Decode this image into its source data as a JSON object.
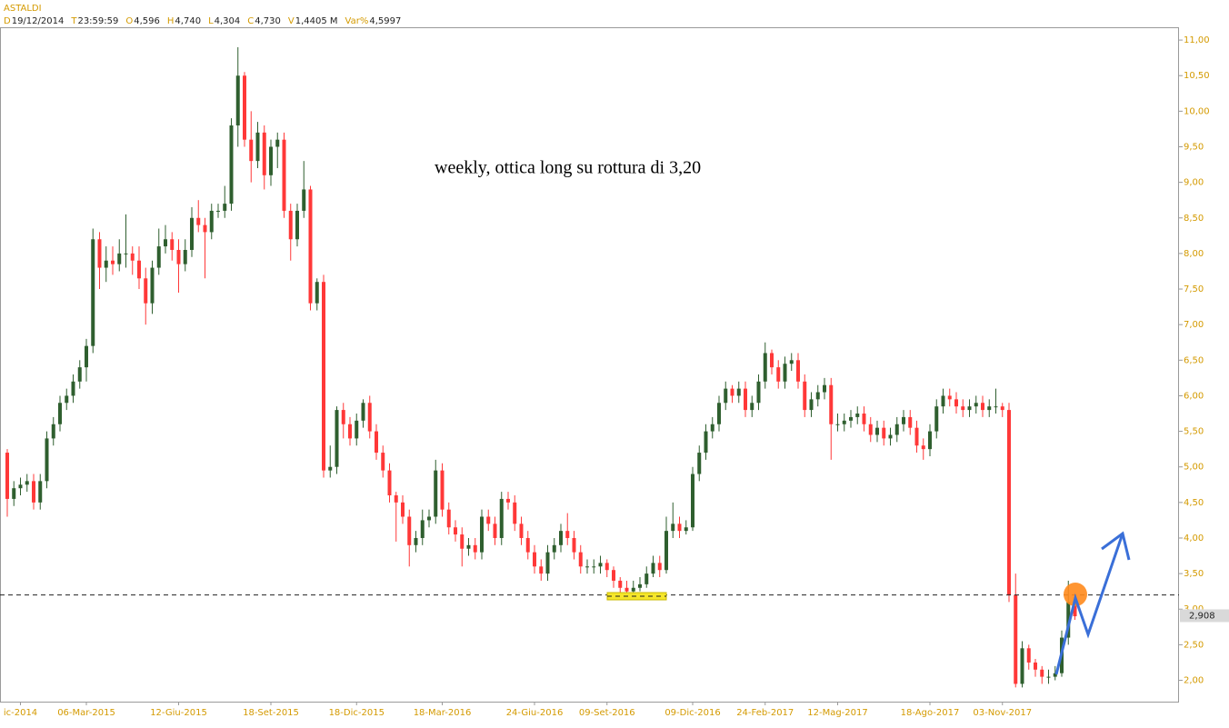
{
  "chart_data": {
    "type": "candlestick",
    "title": "ASTALDI",
    "info": [
      {
        "key": "D",
        "value": "19/12/2014"
      },
      {
        "key": "T",
        "value": "23:59:59"
      },
      {
        "key": "O",
        "value": "4,596"
      },
      {
        "key": "H",
        "value": "4,740"
      },
      {
        "key": "L",
        "value": "4,304"
      },
      {
        "key": "C",
        "value": "4,730"
      },
      {
        "key": "V",
        "value": "1,4405 M"
      },
      {
        "key": "Var%",
        "value": "4,5997"
      }
    ],
    "annotation": "weekly, ottica long su rottura di 3,20",
    "up_color": "#2f5f2f",
    "down_color": "#ff3838",
    "reference_line": 3.2,
    "last_price": {
      "value": 2.908,
      "label": "2,908"
    },
    "ylim": [
      1.7,
      11.18
    ],
    "yticks": [
      {
        "value": 2,
        "label": "2,00"
      },
      {
        "value": 2.5,
        "label": "2,50"
      },
      {
        "value": 3,
        "label": "3,00"
      },
      {
        "value": 3.5,
        "label": "3,50"
      },
      {
        "value": 4,
        "label": "4,00"
      },
      {
        "value": 4.5,
        "label": "4,50"
      },
      {
        "value": 5,
        "label": "5,00"
      },
      {
        "value": 5.5,
        "label": "5,50"
      },
      {
        "value": 6,
        "label": "6,00"
      },
      {
        "value": 6.5,
        "label": "6,50"
      },
      {
        "value": 7,
        "label": "7,00"
      },
      {
        "value": 7.5,
        "label": "7,50"
      },
      {
        "value": 8,
        "label": "8,00"
      },
      {
        "value": 8.5,
        "label": "8,50"
      },
      {
        "value": 9,
        "label": "9,00"
      },
      {
        "value": 9.5,
        "label": "9,50"
      },
      {
        "value": 10,
        "label": "10,00"
      },
      {
        "value": 10.5,
        "label": "10,50"
      },
      {
        "value": 11,
        "label": "11,00"
      }
    ],
    "categories": [
      null,
      null,
      "ic-2014",
      null,
      null,
      null,
      null,
      null,
      null,
      null,
      null,
      null,
      "06-Mar-2015",
      null,
      null,
      null,
      null,
      null,
      null,
      null,
      null,
      null,
      null,
      null,
      null,
      null,
      "12-Giu-2015",
      null,
      null,
      null,
      null,
      null,
      null,
      null,
      null,
      null,
      null,
      null,
      null,
      null,
      "18-Set-2015",
      null,
      null,
      null,
      null,
      null,
      null,
      null,
      null,
      null,
      null,
      null,
      null,
      "18-Dic-2015",
      null,
      null,
      null,
      null,
      null,
      null,
      null,
      null,
      null,
      null,
      null,
      null,
      "18-Mar-2016",
      null,
      null,
      null,
      null,
      null,
      null,
      null,
      null,
      null,
      null,
      null,
      null,
      null,
      "24-Giu-2016",
      null,
      null,
      null,
      null,
      null,
      null,
      null,
      null,
      null,
      null,
      "09-Set-2016",
      null,
      null,
      null,
      null,
      null,
      null,
      null,
      null,
      null,
      null,
      null,
      null,
      "09-Dic-2016",
      null,
      null,
      null,
      null,
      null,
      null,
      null,
      null,
      null,
      null,
      "24-Feb-2017",
      null,
      null,
      null,
      null,
      null,
      null,
      null,
      null,
      null,
      null,
      "12-Mag-2017",
      null,
      null,
      null,
      null,
      null,
      null,
      null,
      null,
      null,
      null,
      null,
      null,
      null,
      "18-Ago-2017",
      null,
      null,
      null,
      null,
      null,
      null,
      null,
      null,
      null,
      null,
      "03-Nov-2017",
      null,
      null,
      null,
      null,
      null,
      null,
      null,
      null,
      null,
      null,
      null
    ],
    "ohlc": [
      [
        5.2,
        5.25,
        4.3,
        4.55
      ],
      [
        4.55,
        4.8,
        4.45,
        4.7
      ],
      [
        4.7,
        4.85,
        4.6,
        4.75
      ],
      [
        4.75,
        4.9,
        4.65,
        4.8
      ],
      [
        4.8,
        4.9,
        4.4,
        4.5
      ],
      [
        4.5,
        4.9,
        4.4,
        4.8
      ],
      [
        4.8,
        5.5,
        4.7,
        5.4
      ],
      [
        5.4,
        5.7,
        5.3,
        5.6
      ],
      [
        5.6,
        6.0,
        5.5,
        5.9
      ],
      [
        5.9,
        6.1,
        5.8,
        6.0
      ],
      [
        6.0,
        6.3,
        5.9,
        6.2
      ],
      [
        6.2,
        6.5,
        6.1,
        6.4
      ],
      [
        6.4,
        6.8,
        6.2,
        6.7
      ],
      [
        6.7,
        8.35,
        6.6,
        8.2
      ],
      [
        8.2,
        8.3,
        7.5,
        7.8
      ],
      [
        7.8,
        8.1,
        7.6,
        7.9
      ],
      [
        7.9,
        8.1,
        7.7,
        7.85
      ],
      [
        7.85,
        8.2,
        7.75,
        8.0
      ],
      [
        8.0,
        8.55,
        7.8,
        8.0
      ],
      [
        8.0,
        8.1,
        7.7,
        7.9
      ],
      [
        7.9,
        8.1,
        7.5,
        7.65
      ],
      [
        7.65,
        7.8,
        7.0,
        7.3
      ],
      [
        7.3,
        7.9,
        7.15,
        7.8
      ],
      [
        7.8,
        8.35,
        7.7,
        8.1
      ],
      [
        8.1,
        8.4,
        8.0,
        8.2
      ],
      [
        8.2,
        8.3,
        7.9,
        8.05
      ],
      [
        8.05,
        8.2,
        7.45,
        7.85
      ],
      [
        7.85,
        8.2,
        7.75,
        8.05
      ],
      [
        8.05,
        8.65,
        7.95,
        8.5
      ],
      [
        8.5,
        8.75,
        8.3,
        8.4
      ],
      [
        8.4,
        8.5,
        7.65,
        8.3
      ],
      [
        8.3,
        8.7,
        8.2,
        8.6
      ],
      [
        8.6,
        8.7,
        8.5,
        8.6
      ],
      [
        8.6,
        8.95,
        8.5,
        8.7
      ],
      [
        8.7,
        9.9,
        8.6,
        9.8
      ],
      [
        9.8,
        10.9,
        9.5,
        10.5
      ],
      [
        10.5,
        10.55,
        9.5,
        9.6
      ],
      [
        9.6,
        10.0,
        9.0,
        9.3
      ],
      [
        9.3,
        9.85,
        9.2,
        9.7
      ],
      [
        9.7,
        9.8,
        8.9,
        9.1
      ],
      [
        9.1,
        9.6,
        8.95,
        9.5
      ],
      [
        9.5,
        9.7,
        9.2,
        9.6
      ],
      [
        9.6,
        9.7,
        8.5,
        8.6
      ],
      [
        8.6,
        8.7,
        7.9,
        8.2
      ],
      [
        8.2,
        8.7,
        8.1,
        8.6
      ],
      [
        8.6,
        9.3,
        8.5,
        8.9
      ],
      [
        8.9,
        8.95,
        7.2,
        7.3
      ],
      [
        7.3,
        7.65,
        7.2,
        7.6
      ],
      [
        7.6,
        7.7,
        4.85,
        4.95
      ],
      [
        4.95,
        5.3,
        4.85,
        5.0
      ],
      [
        5.0,
        5.85,
        4.9,
        5.8
      ],
      [
        5.8,
        5.9,
        5.4,
        5.6
      ],
      [
        5.6,
        5.7,
        5.3,
        5.4
      ],
      [
        5.4,
        5.75,
        5.3,
        5.65
      ],
      [
        5.65,
        5.95,
        5.55,
        5.9
      ],
      [
        5.9,
        6.0,
        5.4,
        5.5
      ],
      [
        5.5,
        5.6,
        5.1,
        5.2
      ],
      [
        5.2,
        5.3,
        4.85,
        4.95
      ],
      [
        4.95,
        5.05,
        4.5,
        4.6
      ],
      [
        4.6,
        4.65,
        3.95,
        4.5
      ],
      [
        4.5,
        4.6,
        4.2,
        4.3
      ],
      [
        4.3,
        4.4,
        3.6,
        3.9
      ],
      [
        3.9,
        4.1,
        3.8,
        4.0
      ],
      [
        4.0,
        4.4,
        3.9,
        4.25
      ],
      [
        4.25,
        4.4,
        4.15,
        4.3
      ],
      [
        4.3,
        5.1,
        4.2,
        4.95
      ],
      [
        4.95,
        5.05,
        4.3,
        4.4
      ],
      [
        4.4,
        4.5,
        4.05,
        4.15
      ],
      [
        4.15,
        4.25,
        3.95,
        4.05
      ],
      [
        4.05,
        4.15,
        3.6,
        3.85
      ],
      [
        3.85,
        4.0,
        3.75,
        3.9
      ],
      [
        3.9,
        4.0,
        3.7,
        3.8
      ],
      [
        3.8,
        4.4,
        3.7,
        4.3
      ],
      [
        4.3,
        4.4,
        4.1,
        4.2
      ],
      [
        4.2,
        4.3,
        3.9,
        4.0
      ],
      [
        4.0,
        4.65,
        3.9,
        4.55
      ],
      [
        4.55,
        4.65,
        4.4,
        4.5
      ],
      [
        4.5,
        4.6,
        4.1,
        4.2
      ],
      [
        4.2,
        4.3,
        3.9,
        4.0
      ],
      [
        4.0,
        4.1,
        3.7,
        3.8
      ],
      [
        3.8,
        3.9,
        3.5,
        3.6
      ],
      [
        3.6,
        3.7,
        3.4,
        3.5
      ],
      [
        3.5,
        3.9,
        3.4,
        3.8
      ],
      [
        3.8,
        4.0,
        3.7,
        3.9
      ],
      [
        3.9,
        4.2,
        3.8,
        4.1
      ],
      [
        4.1,
        4.35,
        3.9,
        4.0
      ],
      [
        4.0,
        4.1,
        3.7,
        3.8
      ],
      [
        3.8,
        3.9,
        3.5,
        3.6
      ],
      [
        3.6,
        3.7,
        3.5,
        3.6
      ],
      [
        3.6,
        3.7,
        3.5,
        3.6
      ],
      [
        3.6,
        3.75,
        3.5,
        3.65
      ],
      [
        3.65,
        3.7,
        3.45,
        3.55
      ],
      [
        3.55,
        3.6,
        3.3,
        3.4
      ],
      [
        3.4,
        3.45,
        3.2,
        3.3
      ],
      [
        3.3,
        3.4,
        3.2,
        3.25
      ],
      [
        3.25,
        3.4,
        3.2,
        3.3
      ],
      [
        3.3,
        3.45,
        3.25,
        3.35
      ],
      [
        3.35,
        3.6,
        3.3,
        3.5
      ],
      [
        3.5,
        3.75,
        3.45,
        3.65
      ],
      [
        3.65,
        3.75,
        3.45,
        3.55
      ],
      [
        3.55,
        4.3,
        3.5,
        4.1
      ],
      [
        4.1,
        4.5,
        4.0,
        4.2
      ],
      [
        4.2,
        4.3,
        4.0,
        4.1
      ],
      [
        4.1,
        4.25,
        4.05,
        4.15
      ],
      [
        4.15,
        5.0,
        4.1,
        4.9
      ],
      [
        4.9,
        5.3,
        4.8,
        5.2
      ],
      [
        5.2,
        5.6,
        5.1,
        5.5
      ],
      [
        5.5,
        5.7,
        5.4,
        5.6
      ],
      [
        5.6,
        6.0,
        5.5,
        5.9
      ],
      [
        5.9,
        6.2,
        5.8,
        6.1
      ],
      [
        6.1,
        6.15,
        5.9,
        6.0
      ],
      [
        6.0,
        6.2,
        5.9,
        6.1
      ],
      [
        6.1,
        6.2,
        5.7,
        5.8
      ],
      [
        5.8,
        6.0,
        5.7,
        5.9
      ],
      [
        5.9,
        6.3,
        5.8,
        6.2
      ],
      [
        6.2,
        6.75,
        6.1,
        6.6
      ],
      [
        6.6,
        6.65,
        6.3,
        6.4
      ],
      [
        6.4,
        6.5,
        6.1,
        6.2
      ],
      [
        6.2,
        6.55,
        6.1,
        6.45
      ],
      [
        6.45,
        6.6,
        6.35,
        6.5
      ],
      [
        6.5,
        6.6,
        6.1,
        6.2
      ],
      [
        6.2,
        6.3,
        5.7,
        5.8
      ],
      [
        5.8,
        6.05,
        5.7,
        5.95
      ],
      [
        5.95,
        6.15,
        5.85,
        6.05
      ],
      [
        6.05,
        6.25,
        5.95,
        6.15
      ],
      [
        6.15,
        6.25,
        5.1,
        5.6
      ],
      [
        5.6,
        5.75,
        5.5,
        5.6
      ],
      [
        5.6,
        5.75,
        5.5,
        5.65
      ],
      [
        5.65,
        5.8,
        5.55,
        5.7
      ],
      [
        5.7,
        5.85,
        5.6,
        5.75
      ],
      [
        5.75,
        5.85,
        5.5,
        5.6
      ],
      [
        5.6,
        5.7,
        5.35,
        5.45
      ],
      [
        5.45,
        5.65,
        5.35,
        5.55
      ],
      [
        5.55,
        5.65,
        5.3,
        5.4
      ],
      [
        5.4,
        5.55,
        5.3,
        5.45
      ],
      [
        5.45,
        5.7,
        5.35,
        5.6
      ],
      [
        5.6,
        5.8,
        5.5,
        5.7
      ],
      [
        5.7,
        5.8,
        5.45,
        5.55
      ],
      [
        5.55,
        5.65,
        5.2,
        5.3
      ],
      [
        5.3,
        5.4,
        5.1,
        5.25
      ],
      [
        5.25,
        5.6,
        5.15,
        5.5
      ],
      [
        5.5,
        5.95,
        5.4,
        5.85
      ],
      [
        5.85,
        6.1,
        5.75,
        6.0
      ],
      [
        6.0,
        6.1,
        5.85,
        5.95
      ],
      [
        5.95,
        6.05,
        5.75,
        5.85
      ],
      [
        5.85,
        5.95,
        5.7,
        5.8
      ],
      [
        5.8,
        5.95,
        5.7,
        5.85
      ],
      [
        5.85,
        6.0,
        5.75,
        5.9
      ],
      [
        5.9,
        6.0,
        5.7,
        5.8
      ],
      [
        5.8,
        5.95,
        5.7,
        5.85
      ],
      [
        5.85,
        6.1,
        5.75,
        5.85
      ],
      [
        5.85,
        5.9,
        5.7,
        5.8
      ],
      [
        5.8,
        5.9,
        3.1,
        3.2
      ],
      [
        3.2,
        3.5,
        1.9,
        1.95
      ],
      [
        1.95,
        2.55,
        1.9,
        2.45
      ],
      [
        2.45,
        2.5,
        2.15,
        2.25
      ],
      [
        2.25,
        2.3,
        2.05,
        2.15
      ],
      [
        2.15,
        2.2,
        1.95,
        2.05
      ],
      [
        2.05,
        2.15,
        1.95,
        2.05
      ],
      [
        2.05,
        2.2,
        2.0,
        2.1
      ],
      [
        2.1,
        2.7,
        2.05,
        2.6
      ],
      [
        2.6,
        3.4,
        2.5,
        3.1
      ],
      [
        3.1,
        3.15,
        2.85,
        2.9
      ]
    ]
  }
}
